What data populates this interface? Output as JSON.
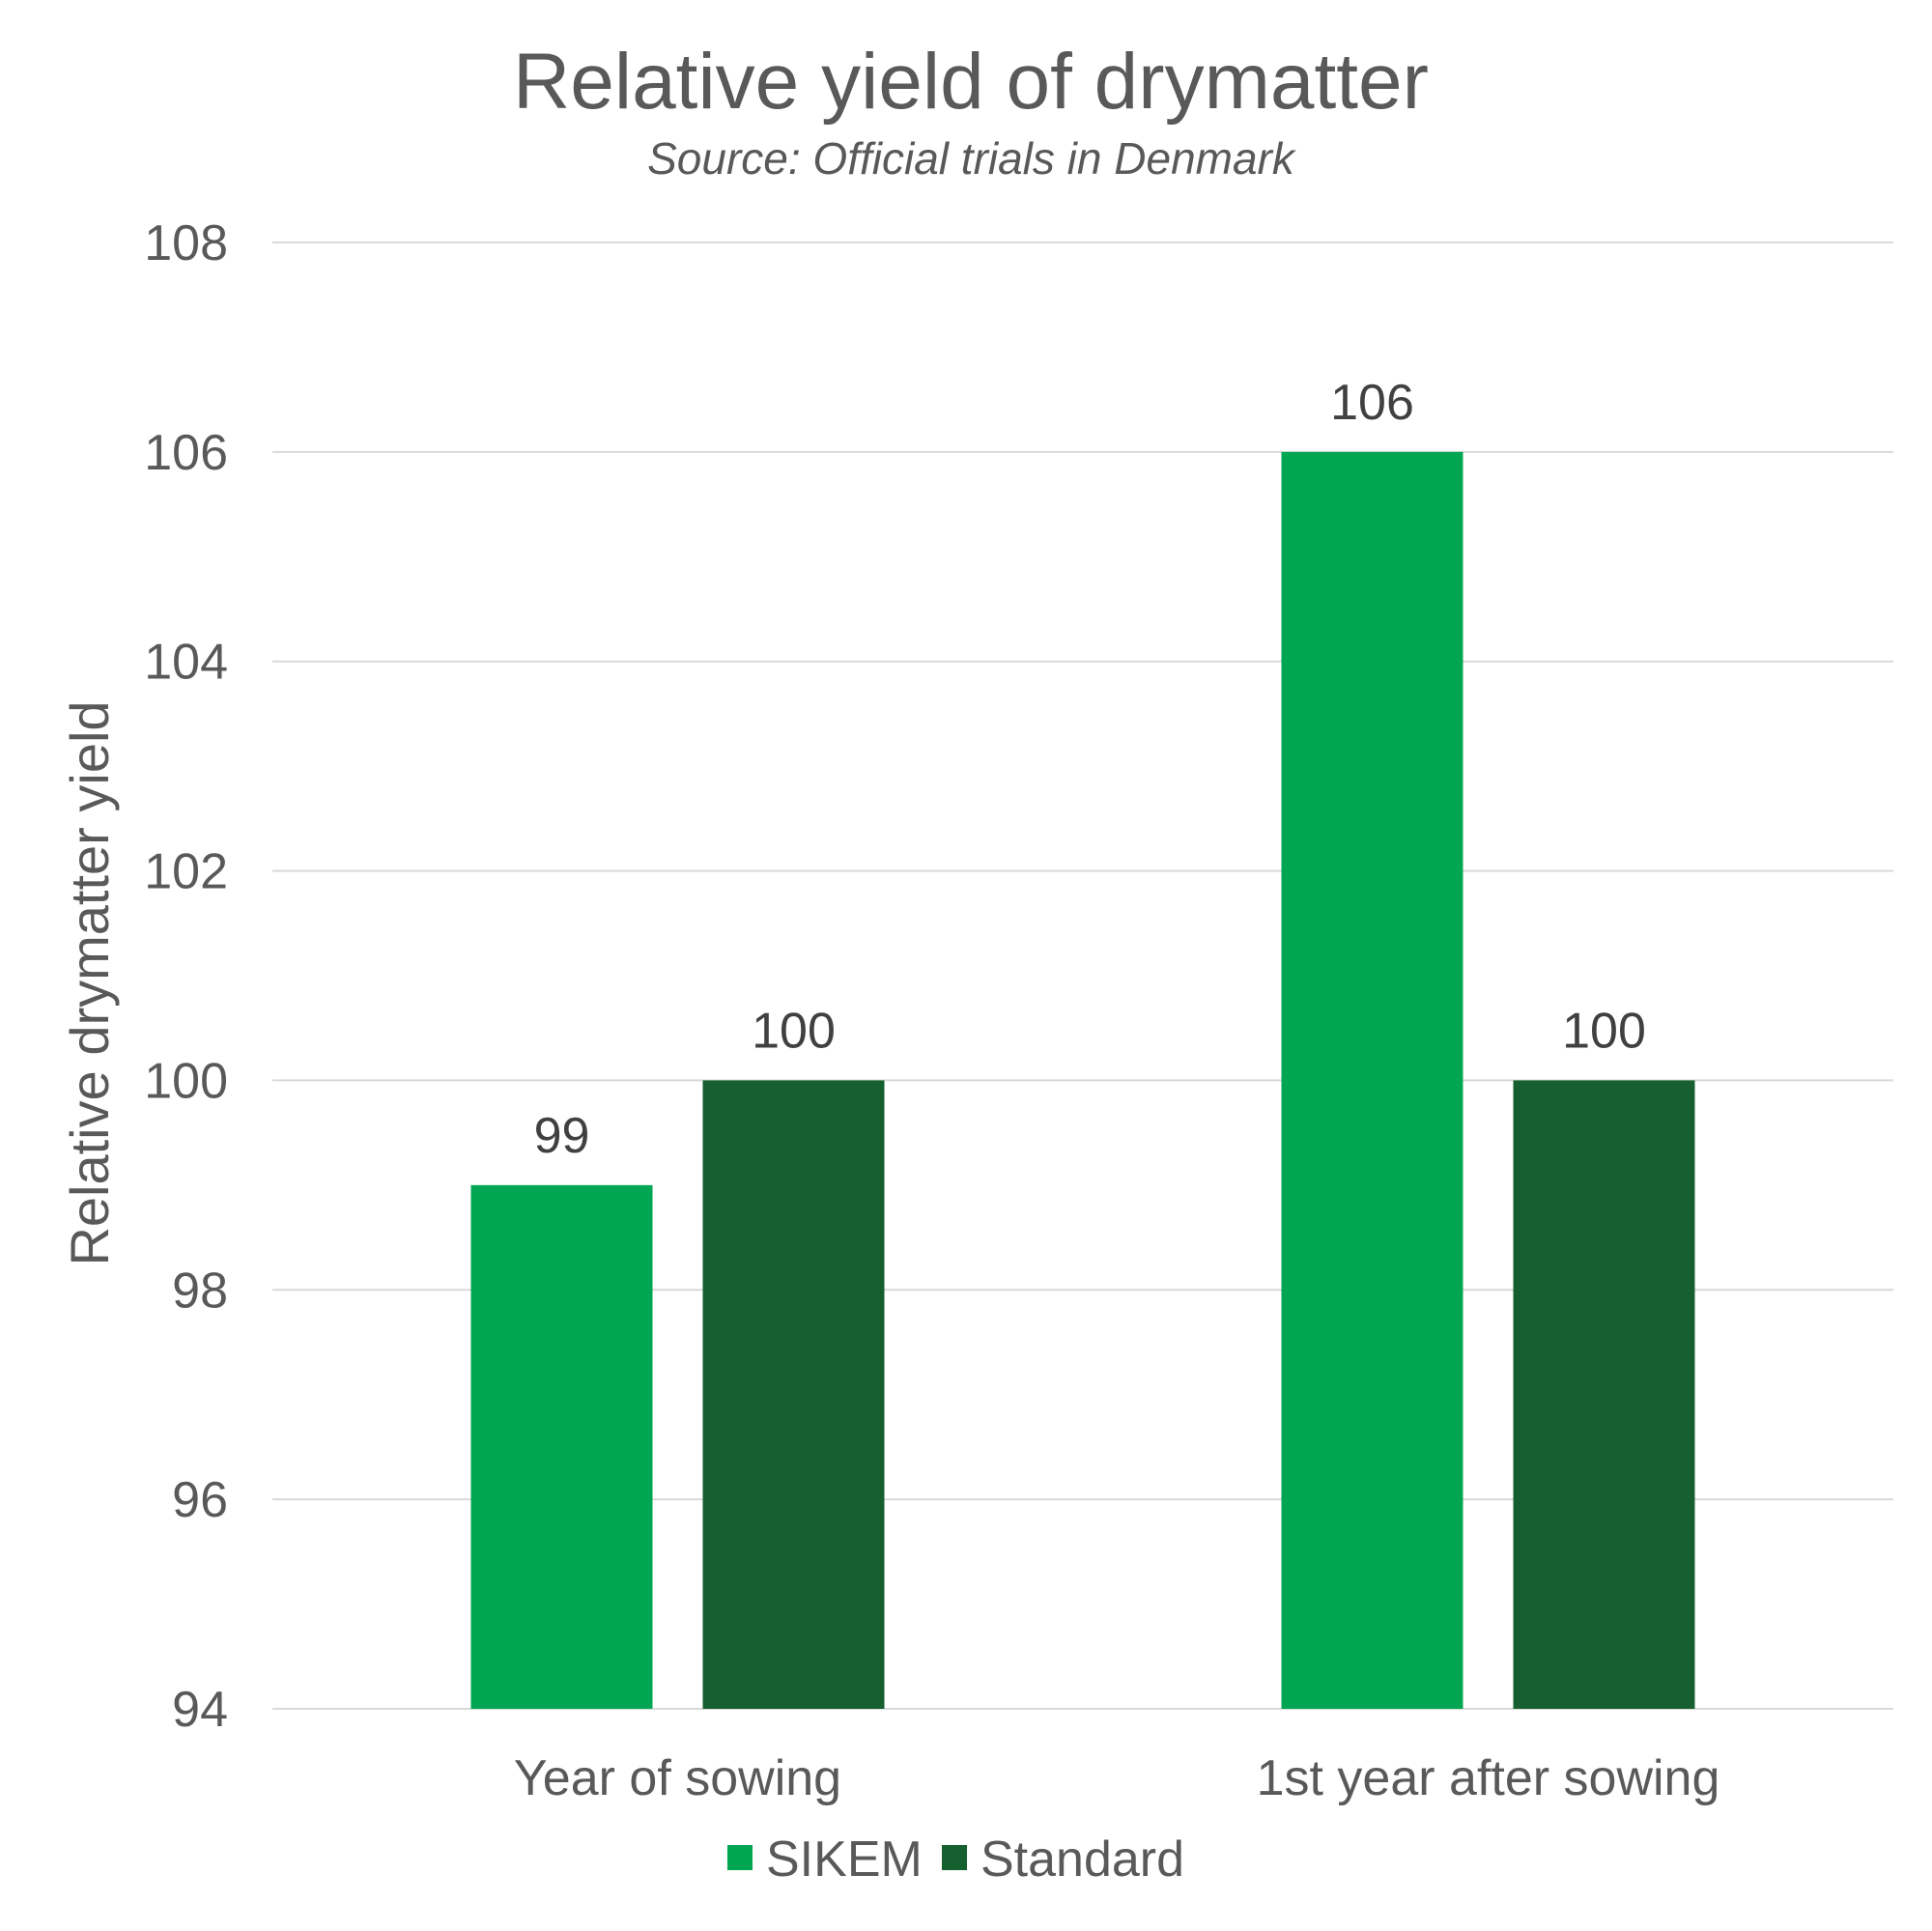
{
  "chart_data": {
    "type": "bar",
    "title": "Relative yield of drymatter",
    "subtitle": "Source: Official trials in Denmark",
    "xlabel": "",
    "ylabel": "Relative drymatter yield",
    "ylim": [
      94,
      108
    ],
    "yticks": [
      94,
      96,
      98,
      100,
      102,
      104,
      106,
      108
    ],
    "categories": [
      "Year of sowing",
      "1st year after sowing"
    ],
    "series": [
      {
        "name": "SIKEM",
        "values": [
          99,
          106
        ],
        "color": "#00A651"
      },
      {
        "name": "Standard",
        "values": [
          100,
          100
        ],
        "color": "#165F2E"
      }
    ],
    "data_labels": true,
    "grid": true,
    "legend_position": "bottom",
    "colors": {
      "grid": "#D9D9D9",
      "text": "#595959",
      "label": "#404040"
    }
  }
}
